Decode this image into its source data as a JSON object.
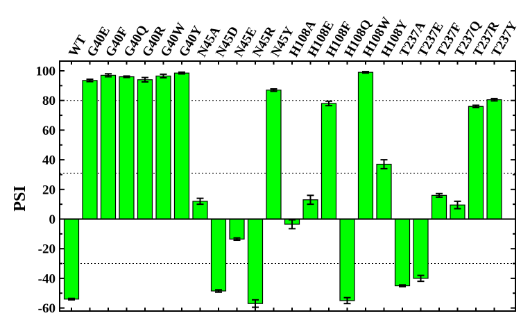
{
  "chart_data": {
    "type": "bar",
    "title": "",
    "xlabel": "",
    "ylabel": "PSI",
    "ylim": [
      -60,
      110
    ],
    "yticks": [
      -60,
      -40,
      -20,
      0,
      20,
      40,
      60,
      80,
      100
    ],
    "minor_ytick_step": 10,
    "reference_lines": [
      80,
      31,
      -30
    ],
    "categories": [
      "WT",
      "G40E",
      "G40F",
      "G40Q",
      "G40R",
      "G40W",
      "G40Y",
      "N45A",
      "N45D",
      "N45E",
      "N45R",
      "N45Y",
      "H108A",
      "H108E",
      "H108F",
      "H108Q",
      "H108W",
      "H108Y",
      "T237A",
      "T237E",
      "T237F",
      "T237Q",
      "T237R",
      "T237Y"
    ],
    "series": [
      {
        "name": "PSI",
        "color": "#00ff00",
        "values": [
          -54,
          93.5,
          97,
          96,
          94,
          96.5,
          98.5,
          12,
          -48.5,
          -13.5,
          -57,
          87,
          -3.5,
          13,
          78,
          -55,
          99,
          37,
          -45,
          -40,
          16,
          9.5,
          76,
          80.5
        ],
        "errors": [
          0.5,
          0.8,
          1,
          0.5,
          1.5,
          1.2,
          0.6,
          2,
          0.8,
          0.8,
          2.5,
          0.8,
          3,
          3,
          1.5,
          2,
          0.5,
          3,
          0.6,
          2,
          1.2,
          2.5,
          0.8,
          0.8
        ]
      }
    ]
  }
}
